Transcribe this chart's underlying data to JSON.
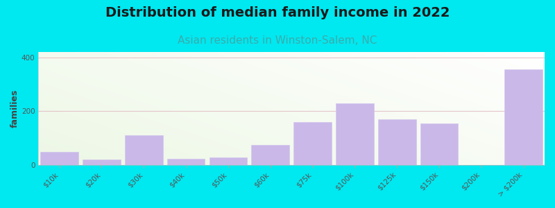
{
  "title": "Distribution of median family income in 2022",
  "subtitle": "Asian residents in Winston-Salem, NC",
  "ylabel": "families",
  "categories": [
    "$10k",
    "$20k",
    "$30k",
    "$40k",
    "$50k",
    "$60k",
    "$75k",
    "$100k",
    "$125k",
    "$150k",
    "$200k",
    "> $200k"
  ],
  "values": [
    47,
    20,
    110,
    22,
    28,
    75,
    160,
    230,
    170,
    155,
    0,
    355
  ],
  "bar_color": "#c9b8e8",
  "bar_edge_color": "#d4c8ee",
  "background_outer": "#00e8f0",
  "title_fontsize": 14,
  "subtitle_fontsize": 11,
  "subtitle_color": "#3aacac",
  "ylabel_fontsize": 9,
  "tick_fontsize": 7.5,
  "ylim": [
    0,
    420
  ],
  "yticks": [
    0,
    200,
    400
  ],
  "grid_color": "#e0b8c0",
  "grid_alpha": 0.8,
  "plot_bg_left_color": "#e8f4e0",
  "plot_bg_right_color": "#f8fef8"
}
